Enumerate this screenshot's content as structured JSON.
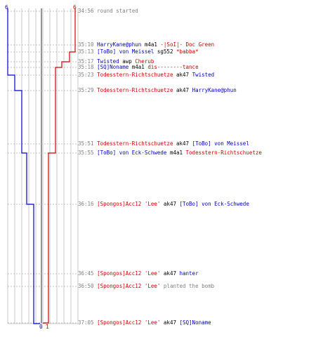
{
  "graph": {
    "team_blue": {
      "color": "#0000cc",
      "start": "6",
      "end": "0"
    },
    "team_red": {
      "color": "#d00000",
      "start": "6",
      "end": "1"
    },
    "grid_color": "#c8c8c8",
    "divider_color": "#707070"
  },
  "events": [
    {
      "time": "34:56",
      "text": [
        {
          "t": "round started",
          "c": "gray"
        }
      ]
    },
    {
      "time": "35:10",
      "text": [
        {
          "t": "HarryKane@phun",
          "c": "blue"
        },
        {
          "t": " m4a1 ",
          "c": "black"
        },
        {
          "t": "-|SoI|- Doc Green",
          "c": "red"
        }
      ]
    },
    {
      "time": "35:13",
      "text": [
        {
          "t": "[ToBo] von Meissel",
          "c": "blue"
        },
        {
          "t": " sg552 ",
          "c": "black"
        },
        {
          "t": "*babba*",
          "c": "red"
        }
      ]
    },
    {
      "time": "35:17",
      "text": [
        {
          "t": "Twisted",
          "c": "blue"
        },
        {
          "t": " awp ",
          "c": "black"
        },
        {
          "t": "Cherub",
          "c": "red"
        }
      ]
    },
    {
      "time": "35:18",
      "text": [
        {
          "t": "[SQ]Noname",
          "c": "blue"
        },
        {
          "t": " m4a1 ",
          "c": "black"
        },
        {
          "t": "dis--------tance",
          "c": "red"
        }
      ]
    },
    {
      "time": "35:23",
      "text": [
        {
          "t": "Todesstern-Richtschuetze",
          "c": "red"
        },
        {
          "t": " ak47 ",
          "c": "black"
        },
        {
          "t": "Twisted",
          "c": "blue"
        }
      ]
    },
    {
      "time": "35:29",
      "text": [
        {
          "t": "Todesstern-Richtschuetze",
          "c": "red"
        },
        {
          "t": " ak47 ",
          "c": "black"
        },
        {
          "t": "HarryKane@phun",
          "c": "blue"
        }
      ]
    },
    {
      "time": "35:51",
      "text": [
        {
          "t": "Todesstern-Richtschuetze",
          "c": "red"
        },
        {
          "t": " ak47 ",
          "c": "black"
        },
        {
          "t": "[ToBo] von Meissel",
          "c": "blue"
        }
      ]
    },
    {
      "time": "35:55",
      "text": [
        {
          "t": "[ToBo] von Eck-Schwede",
          "c": "blue"
        },
        {
          "t": " m4a1 ",
          "c": "black"
        },
        {
          "t": "Todesstern-Richtschuetze",
          "c": "red"
        }
      ]
    },
    {
      "time": "36:16",
      "text": [
        {
          "t": "[Spongos]Acc12 'Lee'",
          "c": "red"
        },
        {
          "t": " ak47 ",
          "c": "black"
        },
        {
          "t": "[ToBo] von Eck-Schwede",
          "c": "blue"
        }
      ]
    },
    {
      "time": "36:45",
      "text": [
        {
          "t": "[Spongos]Acc12 'Lee'",
          "c": "red"
        },
        {
          "t": " ak47 ",
          "c": "black"
        },
        {
          "t": "hanter",
          "c": "blue"
        }
      ]
    },
    {
      "time": "36:50",
      "text": [
        {
          "t": "[Spongos]Acc12 'Lee'",
          "c": "red"
        },
        {
          "t": " planted the bomb",
          "c": "gray"
        }
      ]
    },
    {
      "time": "37:05",
      "text": [
        {
          "t": "[Spongos]Acc12 'Lee'",
          "c": "red"
        },
        {
          "t": " ak47 ",
          "c": "black"
        },
        {
          "t": "[SQ]Noname",
          "c": "blue"
        }
      ]
    }
  ]
}
